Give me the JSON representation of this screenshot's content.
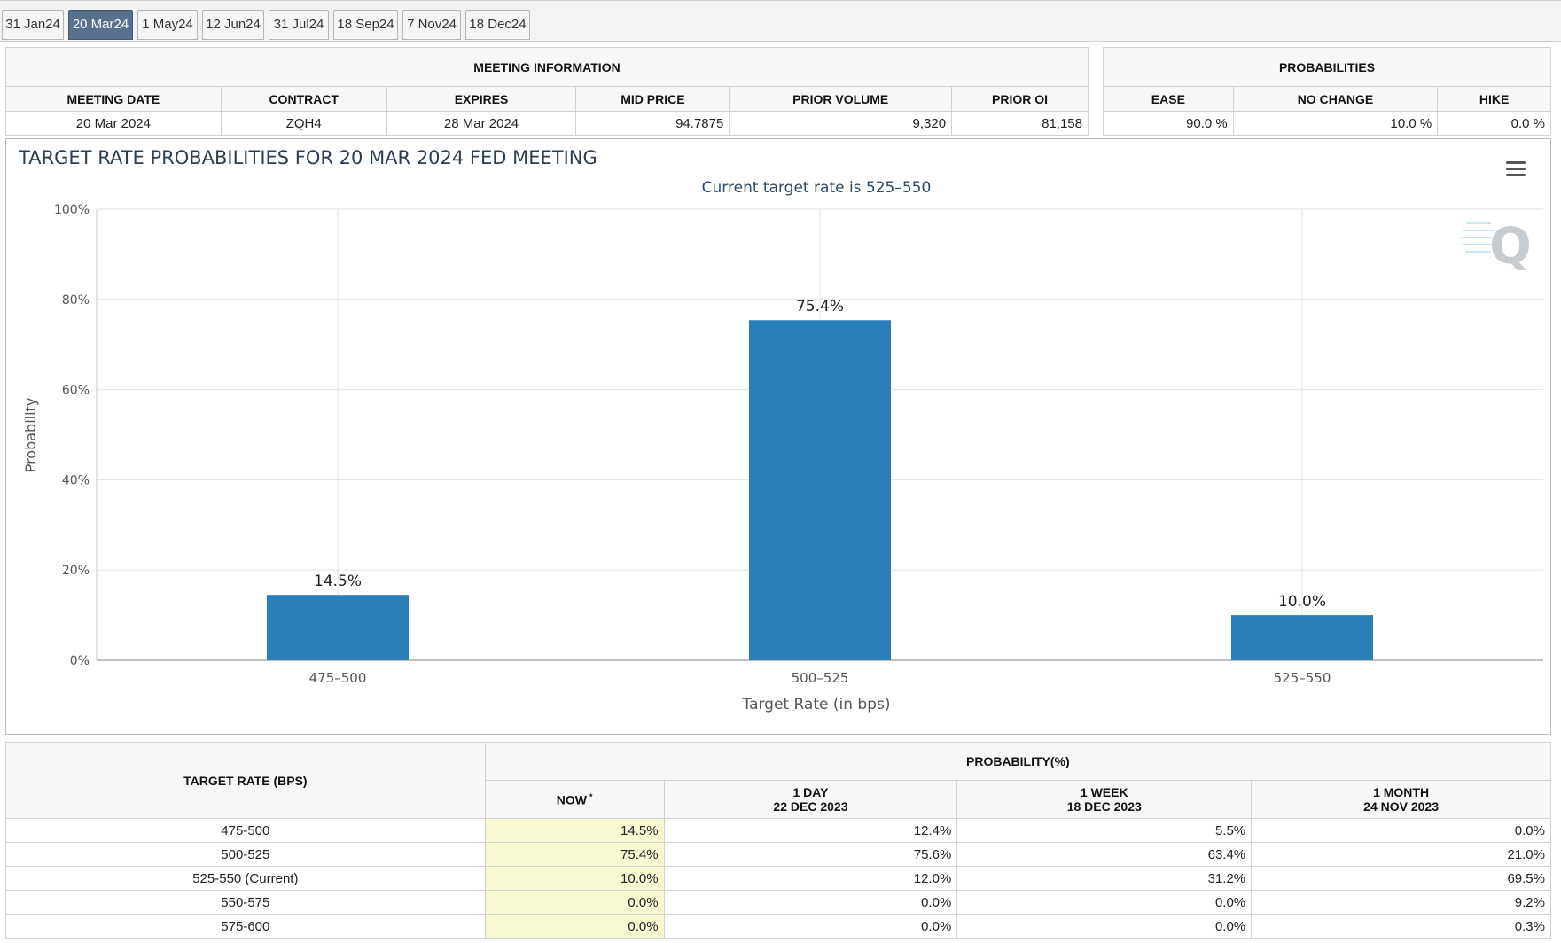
{
  "tabs": [
    {
      "label": "31 Jan24",
      "active": false
    },
    {
      "label": "20 Mar24",
      "active": true
    },
    {
      "label": "1 May24",
      "active": false
    },
    {
      "label": "12 Jun24",
      "active": false
    },
    {
      "label": "31 Jul24",
      "active": false
    },
    {
      "label": "18 Sep24",
      "active": false
    },
    {
      "label": "7 Nov24",
      "active": false
    },
    {
      "label": "18 Dec24",
      "active": false
    }
  ],
  "meeting_info": {
    "heading": "MEETING INFORMATION",
    "columns": [
      "MEETING DATE",
      "CONTRACT",
      "EXPIRES",
      "MID PRICE",
      "PRIOR VOLUME",
      "PRIOR OI"
    ],
    "row": [
      "20 Mar 2024",
      "ZQH4",
      "28 Mar 2024",
      "94.7875",
      "9,320",
      "81,158"
    ]
  },
  "probabilities": {
    "heading": "PROBABILITIES",
    "columns": [
      "EASE",
      "NO CHANGE",
      "HIKE"
    ],
    "row": [
      "90.0 %",
      "10.0 %",
      "0.0 %"
    ]
  },
  "chart_data": {
    "type": "bar",
    "title": "TARGET RATE PROBABILITIES FOR 20 MAR 2024 FED MEETING",
    "subtitle": "Current target rate is 525–550",
    "xlabel": "Target Rate (in bps)",
    "ylabel": "Probability",
    "categories": [
      "475–500",
      "500–525",
      "525–550"
    ],
    "values": [
      14.5,
      75.4,
      10.0
    ],
    "data_labels": [
      "14.5%",
      "75.4%",
      "10.0%"
    ],
    "ylim": [
      0,
      100
    ],
    "yticks": [
      "0%",
      "20%",
      "40%",
      "60%",
      "80%",
      "100%"
    ],
    "ytick_values": [
      0,
      20,
      40,
      60,
      80,
      100
    ],
    "grid": true,
    "bar_color": "#2a7fb8",
    "menu_icon": "hamburger-menu-icon",
    "watermark": "Q"
  },
  "rate_table": {
    "rate_header": "TARGET RATE (BPS)",
    "prob_header": "PROBABILITY(%)",
    "now_label": "NOW",
    "now_mark": "*",
    "periods": [
      {
        "label": "1 DAY",
        "date": "22 DEC 2023"
      },
      {
        "label": "1 WEEK",
        "date": "18 DEC 2023"
      },
      {
        "label": "1 MONTH",
        "date": "24 NOV 2023"
      }
    ],
    "rows": [
      {
        "rate": "475-500",
        "now": "14.5%",
        "day": "12.4%",
        "week": "5.5%",
        "month": "0.0%"
      },
      {
        "rate": "500-525",
        "now": "75.4%",
        "day": "75.6%",
        "week": "63.4%",
        "month": "21.0%"
      },
      {
        "rate": "525-550 (Current)",
        "now": "10.0%",
        "day": "12.0%",
        "week": "31.2%",
        "month": "69.5%"
      },
      {
        "rate": "550-575",
        "now": "0.0%",
        "day": "0.0%",
        "week": "0.0%",
        "month": "9.2%"
      },
      {
        "rate": "575-600",
        "now": "0.0%",
        "day": "0.0%",
        "week": "0.0%",
        "month": "0.3%"
      }
    ]
  }
}
